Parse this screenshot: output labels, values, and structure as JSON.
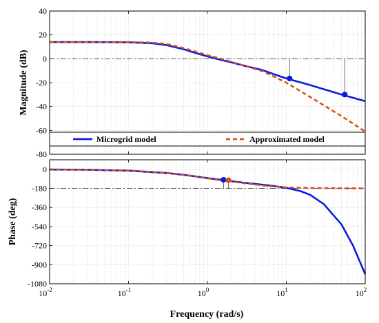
{
  "chart_data": [
    {
      "type": "line",
      "panel": "magnitude",
      "xlabel": "",
      "ylabel": "Magnitude (dB)",
      "xscale": "log",
      "xlim": [
        0.01,
        100
      ],
      "ylim": [
        -80,
        40
      ],
      "yticks": [
        40,
        20,
        0,
        -20,
        -40,
        -60,
        -80
      ],
      "ytick_labels": [
        "40",
        "20",
        "0",
        "-20",
        "-40",
        "-60",
        "-80"
      ],
      "grid": true,
      "legend_placement": "bottom (inside lower band)",
      "reference_line": {
        "y": 0,
        "style": "dash-dot",
        "color": "#555555"
      },
      "series": [
        {
          "name": "Microgrid model",
          "color": "#0a1bdc",
          "style": "solid",
          "x": [
            0.01,
            0.03,
            0.1,
            0.2,
            0.3,
            0.5,
            0.7,
            1,
            1.5,
            2,
            3,
            5,
            7,
            10,
            20,
            50,
            100
          ],
          "y": [
            14,
            14,
            13.8,
            13,
            11.5,
            8,
            5,
            2,
            -1,
            -3,
            -6,
            -9.5,
            -13,
            -16.5,
            -22,
            -30,
            -35.5
          ]
        },
        {
          "name": "Approximated model",
          "color": "#d4531c",
          "style": "dashed",
          "x": [
            0.01,
            0.03,
            0.1,
            0.2,
            0.3,
            0.5,
            0.7,
            1,
            1.5,
            2,
            3,
            5,
            7,
            10,
            20,
            50,
            100
          ],
          "y": [
            14,
            14,
            14,
            13.5,
            12.5,
            9,
            6,
            3,
            0,
            -2.5,
            -6,
            -10.5,
            -15,
            -20,
            -32,
            -48,
            -61
          ]
        }
      ],
      "markers": [
        {
          "x": 11,
          "y": -16.5,
          "color": "#0a1bdc"
        },
        {
          "x": 55,
          "y": -30,
          "color": "#0a1bdc"
        }
      ]
    },
    {
      "type": "line",
      "panel": "phase",
      "xlabel": "Frequency  (rad/s)",
      "ylabel": "Phase (deg)",
      "xscale": "log",
      "xlim": [
        0.01,
        100
      ],
      "xtick_exponents": [
        "-2",
        "-1",
        "0",
        "1",
        "2"
      ],
      "ylim": [
        -1080,
        90
      ],
      "yticks": [
        0,
        -180,
        -360,
        -540,
        -720,
        -900,
        -1080
      ],
      "ytick_labels": [
        "0",
        "-180",
        "-360",
        "-540",
        "-720",
        "-900",
        "-1080"
      ],
      "grid": true,
      "reference_line": {
        "y": -180,
        "style": "dash-dot",
        "color": "#555555"
      },
      "series": [
        {
          "name": "Microgrid model",
          "color": "#0a1bdc",
          "style": "solid",
          "x": [
            0.01,
            0.03,
            0.1,
            0.3,
            0.5,
            1,
            1.5,
            2,
            3,
            5,
            7,
            10,
            15,
            20,
            30,
            50,
            70,
            100
          ],
          "y": [
            -2,
            -4,
            -13,
            -35,
            -52,
            -83,
            -100,
            -112,
            -128,
            -145,
            -158,
            -175,
            -205,
            -240,
            -330,
            -520,
            -720,
            -990
          ]
        },
        {
          "name": "Approximated model",
          "color": "#d4531c",
          "style": "dashed",
          "x": [
            0.01,
            0.03,
            0.1,
            0.3,
            0.5,
            1,
            1.5,
            2,
            3,
            5,
            7,
            10,
            20,
            50,
            100
          ],
          "y": [
            -1,
            -3,
            -11,
            -33,
            -50,
            -85,
            -105,
            -115,
            -132,
            -152,
            -163,
            -170,
            -176,
            -179,
            -180
          ]
        }
      ],
      "markers": [
        {
          "x": 1.6,
          "y": -99,
          "color": "#0a1bdc"
        },
        {
          "x": 1.85,
          "y": -103,
          "color": "#d4531c"
        }
      ]
    }
  ]
}
